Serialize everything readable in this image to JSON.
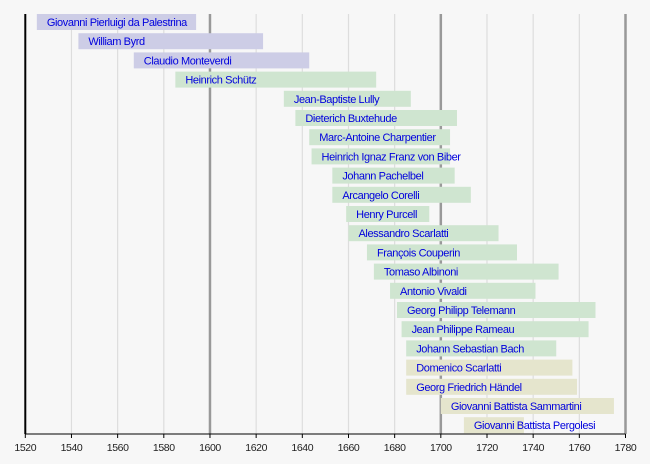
{
  "chart_data": {
    "type": "bar",
    "orientation": "horizontal-timeline",
    "title": "",
    "xlabel": "",
    "ylabel": "",
    "xlim": [
      1520,
      1780
    ],
    "x_ticks": [
      1520,
      1540,
      1560,
      1580,
      1600,
      1620,
      1640,
      1660,
      1680,
      1700,
      1720,
      1740,
      1760,
      1780
    ],
    "major_gridlines": [
      1600,
      1700,
      1780
    ],
    "grid": true,
    "period_colors": {
      "Renaissance": "#cdcde6",
      "Baroque": "#cfe5d0",
      "Classical": "#e5e5cd"
    },
    "series": [
      {
        "name": "Giovanni Pierluigi da Palestrina",
        "start": 1525,
        "end": 1594,
        "period": "Renaissance"
      },
      {
        "name": "William Byrd",
        "start": 1543,
        "end": 1623,
        "period": "Renaissance"
      },
      {
        "name": "Claudio Monteverdi",
        "start": 1567,
        "end": 1643,
        "period": "Renaissance"
      },
      {
        "name": "Heinrich Schütz",
        "start": 1585,
        "end": 1672,
        "period": "Baroque"
      },
      {
        "name": "Jean-Baptiste Lully",
        "start": 1632,
        "end": 1687,
        "period": "Baroque"
      },
      {
        "name": "Dieterich Buxtehude",
        "start": 1637,
        "end": 1707,
        "period": "Baroque"
      },
      {
        "name": "Marc-Antoine Charpentier",
        "start": 1643,
        "end": 1704,
        "period": "Baroque"
      },
      {
        "name": "Heinrich Ignaz Franz von Biber",
        "start": 1644,
        "end": 1704,
        "period": "Baroque"
      },
      {
        "name": "Johann Pachelbel",
        "start": 1653,
        "end": 1706,
        "period": "Baroque"
      },
      {
        "name": "Arcangelo Corelli",
        "start": 1653,
        "end": 1713,
        "period": "Baroque"
      },
      {
        "name": "Henry Purcell",
        "start": 1659,
        "end": 1695,
        "period": "Baroque"
      },
      {
        "name": "Alessandro Scarlatti",
        "start": 1660,
        "end": 1725,
        "period": "Baroque"
      },
      {
        "name": "François Couperin",
        "start": 1668,
        "end": 1733,
        "period": "Baroque"
      },
      {
        "name": "Tomaso Albinoni",
        "start": 1671,
        "end": 1751,
        "period": "Baroque"
      },
      {
        "name": "Antonio Vivaldi",
        "start": 1678,
        "end": 1741,
        "period": "Baroque"
      },
      {
        "name": "Georg Philipp Telemann",
        "start": 1681,
        "end": 1767,
        "period": "Baroque"
      },
      {
        "name": "Jean Philippe Rameau",
        "start": 1683,
        "end": 1764,
        "period": "Baroque"
      },
      {
        "name": "Johann Sebastian Bach",
        "start": 1685,
        "end": 1750,
        "period": "Baroque"
      },
      {
        "name": "Domenico Scarlatti",
        "start": 1685,
        "end": 1757,
        "period": "Classical"
      },
      {
        "name": "Georg Friedrich Händel",
        "start": 1685,
        "end": 1759,
        "period": "Classical"
      },
      {
        "name": "Giovanni Battista Sammartini",
        "start": 1700,
        "end": 1775,
        "period": "Classical"
      },
      {
        "name": "Giovanni Battista Pergolesi",
        "start": 1710,
        "end": 1736,
        "period": "Classical"
      }
    ]
  }
}
